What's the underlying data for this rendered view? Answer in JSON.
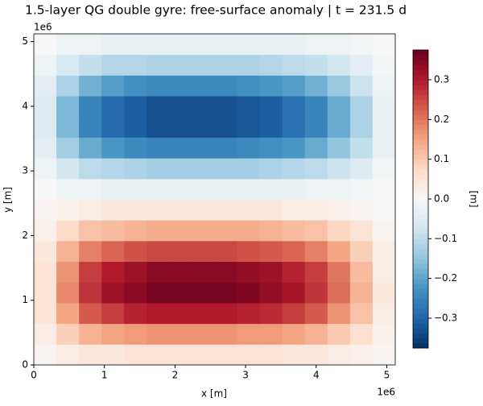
{
  "chart_data": {
    "type": "heatmap",
    "title": "1.5-layer QG double gyre: free-surface anomaly | t = 231.5 d",
    "xlabel": "x [m]",
    "ylabel": "y [m]",
    "x_offset_label": "1e6",
    "y_offset_label": "1e6",
    "xlim": [
      0,
      5120000
    ],
    "ylim": [
      0,
      5120000
    ],
    "xticks": [
      {
        "value": 0,
        "label": "0"
      },
      {
        "value": 1000000,
        "label": "1"
      },
      {
        "value": 2000000,
        "label": "2"
      },
      {
        "value": 3000000,
        "label": "3"
      },
      {
        "value": 4000000,
        "label": "4"
      },
      {
        "value": 5000000,
        "label": "5"
      }
    ],
    "yticks": [
      {
        "value": 0,
        "label": "0"
      },
      {
        "value": 1000000,
        "label": "1"
      },
      {
        "value": 2000000,
        "label": "2"
      },
      {
        "value": 3000000,
        "label": "3"
      },
      {
        "value": 4000000,
        "label": "4"
      },
      {
        "value": 5000000,
        "label": "5"
      }
    ],
    "colorbar_label": "[m]",
    "clim": [
      -0.375,
      0.375
    ],
    "cticks": [
      {
        "value": -0.3,
        "label": "−0.3"
      },
      {
        "value": -0.2,
        "label": "−0.2"
      },
      {
        "value": -0.1,
        "label": "−0.1"
      },
      {
        "value": 0,
        "label": "0.0"
      },
      0.1,
      0.2,
      0.3
    ],
    "colormap": [
      "#053061",
      "#2166ac",
      "#4393c3",
      "#92c5de",
      "#d1e5f0",
      "#f7f7f7",
      "#fddbc7",
      "#f4a582",
      "#d6604d",
      "#b2182b",
      "#67001f"
    ],
    "z": [
      [
        0.01,
        0.03,
        0.04,
        0.04,
        0.05,
        0.05,
        0.05,
        0.05,
        0.05,
        0.05,
        0.05,
        0.04,
        0.04,
        0.03,
        0.02,
        0.01
      ],
      [
        0.03,
        0.09,
        0.13,
        0.15,
        0.16,
        0.17,
        0.17,
        0.17,
        0.17,
        0.16,
        0.16,
        0.15,
        0.13,
        0.1,
        0.06,
        0.02
      ],
      [
        0.05,
        0.15,
        0.23,
        0.26,
        0.29,
        0.3,
        0.3,
        0.3,
        0.3,
        0.29,
        0.28,
        0.26,
        0.23,
        0.17,
        0.11,
        0.03
      ],
      [
        0.05,
        0.18,
        0.27,
        0.32,
        0.34,
        0.36,
        0.36,
        0.36,
        0.36,
        0.35,
        0.33,
        0.31,
        0.27,
        0.21,
        0.13,
        0.04
      ],
      [
        0.05,
        0.17,
        0.26,
        0.3,
        0.32,
        0.34,
        0.34,
        0.34,
        0.34,
        0.33,
        0.32,
        0.29,
        0.26,
        0.2,
        0.12,
        0.03
      ],
      [
        0.04,
        0.13,
        0.19,
        0.22,
        0.24,
        0.25,
        0.25,
        0.25,
        0.25,
        0.24,
        0.23,
        0.22,
        0.19,
        0.15,
        0.09,
        0.03
      ],
      [
        0.02,
        0.07,
        0.11,
        0.12,
        0.13,
        0.14,
        0.14,
        0.14,
        0.14,
        0.14,
        0.13,
        0.12,
        0.11,
        0.08,
        0.05,
        0.01
      ],
      [
        0.01,
        0.02,
        0.03,
        0.04,
        0.04,
        0.04,
        0.04,
        0.04,
        0.04,
        0.04,
        0.04,
        0.03,
        0.03,
        0.02,
        0.01,
        0
      ],
      [
        0,
        -0.02,
        -0.02,
        -0.03,
        -0.03,
        -0.03,
        -0.03,
        -0.03,
        -0.03,
        -0.03,
        -0.03,
        -0.03,
        -0.02,
        -0.02,
        -0.01,
        0
      ],
      [
        -0.02,
        -0.07,
        -0.1,
        -0.11,
        -0.12,
        -0.13,
        -0.13,
        -0.13,
        -0.13,
        -0.13,
        -0.12,
        -0.11,
        -0.1,
        -0.08,
        -0.05,
        -0.01
      ],
      [
        -0.04,
        -0.13,
        -0.19,
        -0.22,
        -0.24,
        -0.25,
        -0.25,
        -0.25,
        -0.25,
        -0.24,
        -0.23,
        -0.22,
        -0.19,
        -0.15,
        -0.09,
        -0.03
      ],
      [
        -0.05,
        -0.17,
        -0.25,
        -0.29,
        -0.31,
        -0.33,
        -0.33,
        -0.33,
        -0.33,
        -0.32,
        -0.31,
        -0.28,
        -0.25,
        -0.19,
        -0.12,
        -0.03
      ],
      [
        -0.05,
        -0.17,
        -0.25,
        -0.29,
        -0.31,
        -0.33,
        -0.33,
        -0.33,
        -0.33,
        -0.32,
        -0.31,
        -0.28,
        -0.25,
        -0.19,
        -0.12,
        -0.03
      ],
      [
        -0.04,
        -0.12,
        -0.18,
        -0.21,
        -0.23,
        -0.24,
        -0.24,
        -0.24,
        -0.24,
        -0.23,
        -0.22,
        -0.21,
        -0.18,
        -0.14,
        -0.08,
        -0.02
      ],
      [
        -0.02,
        -0.06,
        -0.09,
        -0.11,
        -0.11,
        -0.12,
        -0.12,
        -0.12,
        -0.12,
        -0.12,
        -0.11,
        -0.1,
        -0.09,
        -0.07,
        -0.04,
        -0.01
      ],
      [
        0,
        -0.02,
        -0.02,
        -0.03,
        -0.03,
        -0.03,
        -0.03,
        -0.03,
        -0.03,
        -0.03,
        -0.03,
        -0.03,
        -0.02,
        -0.02,
        -0.01,
        0
      ]
    ]
  }
}
